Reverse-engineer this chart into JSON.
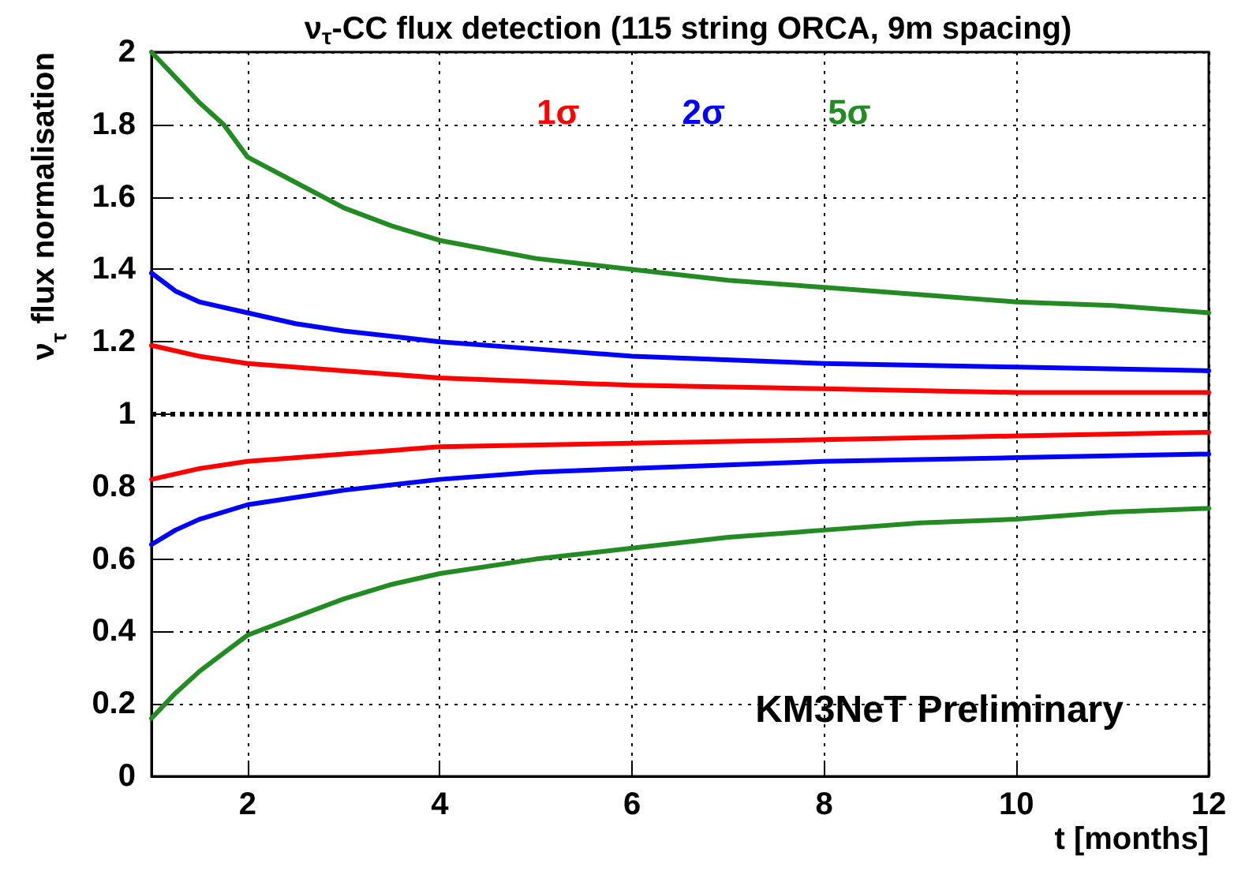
{
  "chart_data": {
    "type": "line",
    "title": "ν$_{τ}$-CC flux detection (115 string ORCA, 9m spacing)",
    "xlabel": "t [months]",
    "ylabel": "ν$_{τ}$ flux normalisation",
    "xlim": [
      1,
      12
    ],
    "xticks": [
      2,
      4,
      6,
      8,
      10,
      12
    ],
    "ylim": [
      0,
      2
    ],
    "yticks": [
      0,
      0.2,
      0.4,
      0.6,
      0.8,
      1,
      1.2,
      1.4,
      1.6,
      1.8,
      2
    ],
    "grid": true,
    "legend": "top",
    "series": [
      {
        "name": "1σ",
        "color": "#ff0000",
        "x": [
          1,
          1.5,
          2,
          3,
          4,
          6,
          8,
          10,
          12
        ],
        "values": [
          1.19,
          1.16,
          1.14,
          1.12,
          1.1,
          1.08,
          1.07,
          1.06,
          1.06
        ]
      },
      {
        "color": "#ff0000",
        "x": [
          1,
          1.5,
          2,
          3,
          4,
          6,
          8,
          10,
          12
        ],
        "values": [
          0.82,
          0.85,
          0.87,
          0.89,
          0.91,
          0.92,
          0.93,
          0.94,
          0.95
        ]
      },
      {
        "name": "2σ",
        "color": "#0000ff",
        "x": [
          1,
          1.25,
          1.5,
          2,
          2.5,
          3,
          4,
          5,
          6,
          8,
          10,
          12
        ],
        "values": [
          1.39,
          1.34,
          1.31,
          1.28,
          1.25,
          1.23,
          1.2,
          1.18,
          1.16,
          1.14,
          1.13,
          1.12
        ]
      },
      {
        "color": "#0000ff",
        "x": [
          1,
          1.25,
          1.5,
          2,
          2.5,
          3,
          4,
          5,
          6,
          8,
          10,
          12
        ],
        "values": [
          0.64,
          0.68,
          0.71,
          0.75,
          0.77,
          0.79,
          0.82,
          0.84,
          0.85,
          0.87,
          0.88,
          0.89
        ]
      },
      {
        "name": "5σ",
        "color": "#228b22",
        "x": [
          1,
          1.25,
          1.5,
          1.75,
          2,
          2.5,
          3,
          3.5,
          4,
          5,
          6,
          7,
          8,
          9,
          10,
          11,
          12
        ],
        "values": [
          2.0,
          1.93,
          1.86,
          1.8,
          1.71,
          1.64,
          1.57,
          1.52,
          1.48,
          1.43,
          1.4,
          1.37,
          1.35,
          1.33,
          1.31,
          1.3,
          1.28
        ]
      },
      {
        "color": "#228b22",
        "x": [
          1,
          1.25,
          1.5,
          1.75,
          2,
          2.5,
          3,
          3.5,
          4,
          5,
          6,
          7,
          8,
          9,
          10,
          11,
          12
        ],
        "values": [
          0.16,
          0.23,
          0.29,
          0.34,
          0.39,
          0.44,
          0.49,
          0.53,
          0.56,
          0.6,
          0.63,
          0.66,
          0.68,
          0.7,
          0.71,
          0.73,
          0.74
        ]
      }
    ],
    "ref_lines": [
      {
        "axis": "y",
        "value": 1,
        "color": "#000000",
        "line_style": "dotted"
      }
    ],
    "annotations": [
      "KM3NeT Preliminary"
    ]
  }
}
